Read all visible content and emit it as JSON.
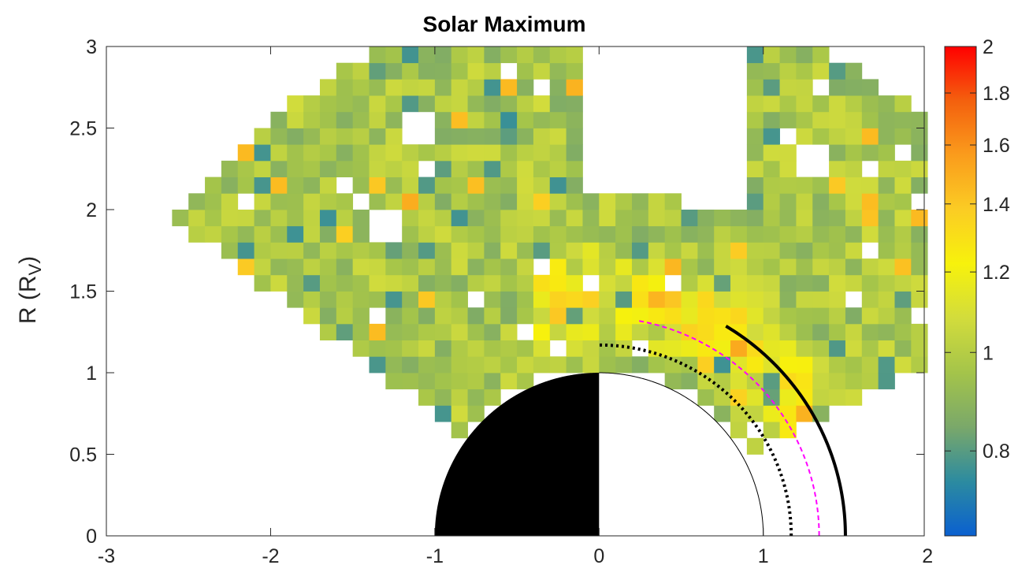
{
  "chart_data": {
    "type": "heatmap",
    "title": "Solar Maximum",
    "ylabel_main": "R (R",
    "ylabel_sub": "V",
    "ylabel_close": ")",
    "xlabel": "",
    "xlim": [
      -3,
      1.98
    ],
    "ylim": [
      0,
      3
    ],
    "xticks": [
      -3,
      -2,
      -1,
      0,
      1,
      2
    ],
    "xtick_labels": [
      "-3",
      "-2",
      "-1",
      "0",
      "1",
      "2"
    ],
    "yticks": [
      0,
      0.5,
      1,
      1.5,
      2,
      2.5,
      3
    ],
    "ytick_labels": [
      "0",
      "0.5",
      "1",
      "1.5",
      "2",
      "2.5",
      "3"
    ],
    "grid": false,
    "colormap": "parula",
    "colorbar": {
      "limits": [
        0.66,
        2.0
      ],
      "scale": "log",
      "ticks": [
        0.8,
        1,
        1.2,
        1.4,
        1.6,
        1.8,
        2
      ],
      "tick_labels": [
        "0.8",
        "1",
        "1.2",
        "1.4",
        "1.6",
        "1.8",
        "2"
      ],
      "colors": [
        "#0a60d0",
        "#2c8ba0",
        "#7aa86a",
        "#a4c44a",
        "#d2dc3c",
        "#f7f20c",
        "#fbcc24",
        "#fa9c1c",
        "#f4600e",
        "#ff0000"
      ]
    },
    "cell_size": 0.1,
    "cell_value_range": [
      0.75,
      1.9
    ],
    "overlays": [
      {
        "name": "bow-shock",
        "style": "solid",
        "color": "#000000",
        "radius": 1.5,
        "theta_range_deg": [
          0,
          59
        ]
      },
      {
        "name": "induced-magnetopause",
        "style": "dashed",
        "color": "#ff00ff",
        "radius": 1.34,
        "theta_range_deg": [
          0,
          80
        ]
      },
      {
        "name": "dotted-boundary",
        "style": "dotted",
        "color": "#000000",
        "radius": 1.17,
        "theta_range_deg": [
          0,
          90
        ]
      },
      {
        "name": "planet-dayside-outline",
        "style": "solid",
        "color": "#000000",
        "radius": 1.0,
        "theta_range_deg": [
          0,
          90
        ]
      },
      {
        "name": "planet-nightside-filled",
        "style": "filled",
        "color": "#000000",
        "radius": 1.0,
        "theta_range_deg": [
          90,
          180
        ]
      }
    ],
    "data_region": {
      "r_min": 1.0,
      "r_max": 3.0,
      "theta_min_deg": 28,
      "theta_max_deg": 143,
      "outer_radius_dayside": 1.5,
      "gaps": [
        [
          -2.5,
          2.7
        ],
        [
          -1.3,
          1.9
        ],
        [
          1.3,
          2.3
        ]
      ]
    }
  }
}
